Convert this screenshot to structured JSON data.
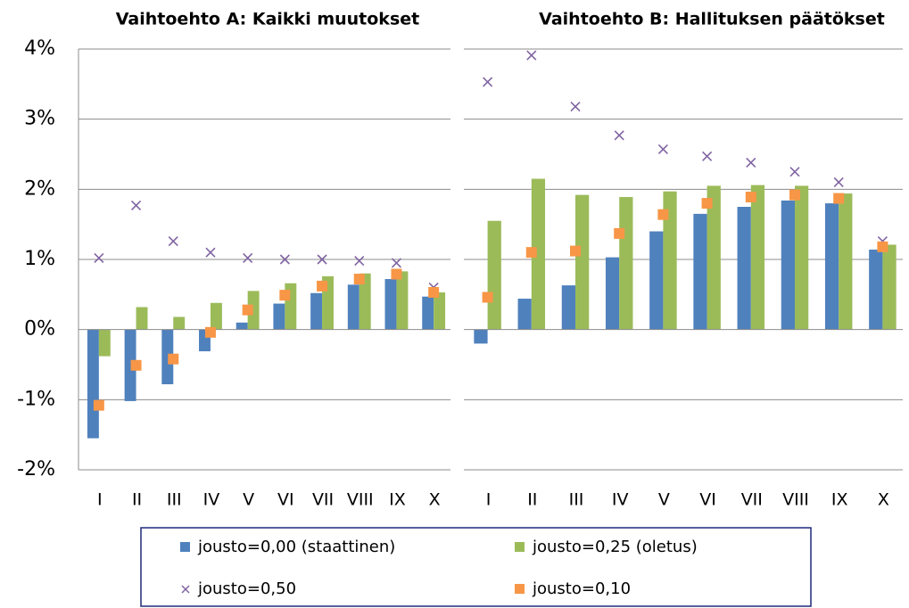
{
  "chart_data": {
    "type": "bar",
    "ylim": [
      -2,
      4
    ],
    "yticks": [
      {
        "value": -2,
        "label": "-2%"
      },
      {
        "value": -1,
        "label": "-1%"
      },
      {
        "value": 0,
        "label": "0%"
      },
      {
        "value": 1,
        "label": "1%"
      },
      {
        "value": 2,
        "label": "2%"
      },
      {
        "value": 3,
        "label": "3%"
      },
      {
        "value": 4,
        "label": "4%"
      }
    ],
    "grid": true,
    "legend": "bottom",
    "series": [
      {
        "name": "jousto=0,00 (staattinen)",
        "color": "#4f81bd",
        "type": "bar"
      },
      {
        "name": "jousto=0,25 (oletus)",
        "color": "#9bbb59",
        "type": "bar"
      },
      {
        "name": "jousto=0,50",
        "color": "#8064a2",
        "type": "scatter",
        "marker": "x"
      },
      {
        "name": "jousto=0,10",
        "color": "#f79646",
        "type": "scatter",
        "marker": "square"
      }
    ],
    "panels": [
      {
        "title": "Vaihtoehto A: Kaikki muutokset",
        "categories": [
          "I",
          "II",
          "III",
          "IV",
          "V",
          "VI",
          "VII",
          "VIII",
          "IX",
          "X"
        ],
        "series": [
          {
            "values": [
              -1.55,
              -1.02,
              -0.78,
              -0.31,
              0.1,
              0.37,
              0.52,
              0.64,
              0.72,
              0.47
            ]
          },
          {
            "values": [
              -0.38,
              0.32,
              0.18,
              0.38,
              0.55,
              0.66,
              0.76,
              0.8,
              0.83,
              0.53
            ]
          },
          {
            "values": [
              1.02,
              1.77,
              1.26,
              1.1,
              1.02,
              1.0,
              1.0,
              0.98,
              0.95,
              0.6
            ]
          },
          {
            "values": [
              -1.08,
              -0.51,
              -0.42,
              -0.04,
              0.28,
              0.49,
              0.62,
              0.72,
              0.79,
              0.53
            ]
          }
        ]
      },
      {
        "title": "Vaihtoehto B: Hallituksen päätökset",
        "categories": [
          "I",
          "II",
          "III",
          "IV",
          "V",
          "VI",
          "VII",
          "VIII",
          "IX",
          "X"
        ],
        "series": [
          {
            "values": [
              -0.2,
              0.44,
              0.63,
              1.03,
              1.4,
              1.65,
              1.75,
              1.84,
              1.8,
              1.14
            ]
          },
          {
            "values": [
              1.55,
              2.15,
              1.92,
              1.89,
              1.97,
              2.05,
              2.06,
              2.05,
              1.94,
              1.21
            ]
          },
          {
            "values": [
              3.53,
              3.91,
              3.18,
              2.77,
              2.57,
              2.47,
              2.38,
              2.25,
              2.1,
              1.26
            ]
          },
          {
            "values": [
              0.46,
              1.1,
              1.12,
              1.37,
              1.64,
              1.8,
              1.89,
              1.92,
              1.87,
              1.18
            ]
          }
        ]
      }
    ]
  }
}
